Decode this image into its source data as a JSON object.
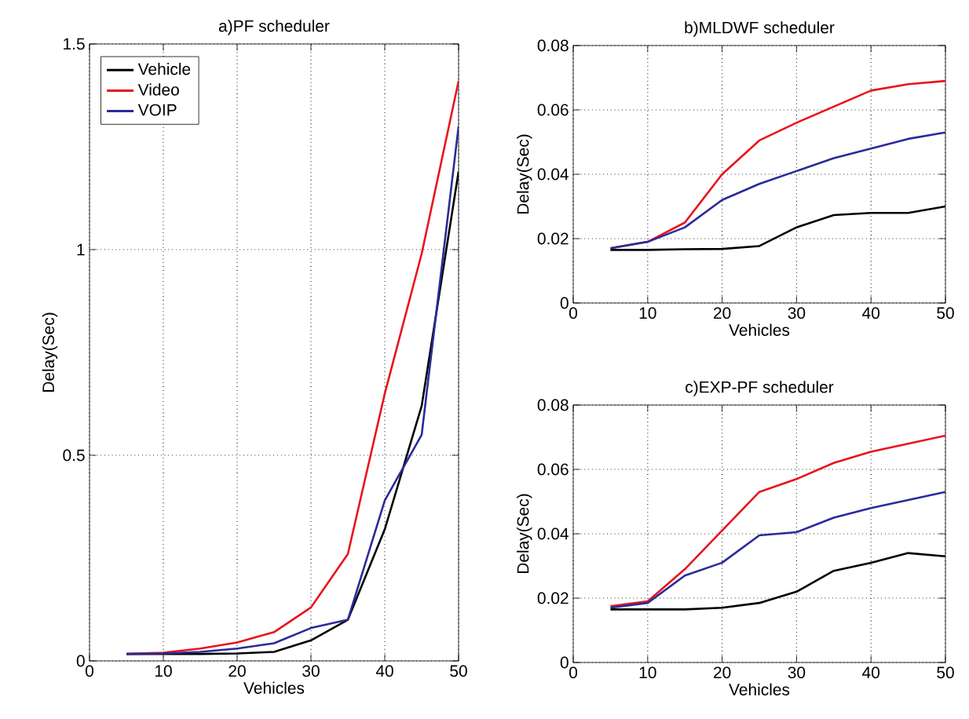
{
  "chart_data": [
    {
      "type": "line",
      "title": "a)PF scheduler",
      "xlabel": "Vehicles",
      "ylabel": "Delay(Sec)",
      "x": [
        5,
        10,
        15,
        20,
        25,
        30,
        35,
        40,
        45,
        50
      ],
      "xlim": [
        0,
        50
      ],
      "xticks": [
        0,
        10,
        20,
        30,
        40,
        50
      ],
      "ylim": [
        0,
        1.5
      ],
      "yticks": [
        0,
        0.5,
        1,
        1.5
      ],
      "grid": true,
      "legend": "top left",
      "marker": "none",
      "line_style": "solid",
      "series": [
        {
          "name": "Vehicle",
          "color": "#000000",
          "values": [
            0.017,
            0.017,
            0.017,
            0.018,
            0.022,
            0.05,
            0.1,
            0.32,
            0.62,
            1.19
          ]
        },
        {
          "name": "Video",
          "color": "#e8141c",
          "values": [
            0.017,
            0.02,
            0.03,
            0.045,
            0.07,
            0.13,
            0.26,
            0.65,
            0.99,
            1.41
          ]
        },
        {
          "name": "VOIP",
          "color": "#2a2a9a",
          "values": [
            0.017,
            0.018,
            0.022,
            0.03,
            0.043,
            0.08,
            0.1,
            0.39,
            0.55,
            1.3
          ]
        }
      ]
    },
    {
      "type": "line",
      "title": "b)MLDWF scheduler",
      "xlabel": "Vehicles",
      "ylabel": "Delay(Sec)",
      "x": [
        5,
        10,
        15,
        20,
        25,
        30,
        35,
        40,
        45,
        50
      ],
      "xlim": [
        0,
        50
      ],
      "xticks": [
        0,
        10,
        20,
        30,
        40,
        50
      ],
      "ylim": [
        0,
        0.08
      ],
      "yticks": [
        0,
        0.02,
        0.04,
        0.06,
        0.08
      ],
      "grid": true,
      "marker": "none",
      "line_style": "solid",
      "series": [
        {
          "color": "#000000",
          "values": [
            0.0165,
            0.0165,
            0.0167,
            0.0168,
            0.0177,
            0.0235,
            0.0273,
            0.028,
            0.028,
            0.03
          ]
        },
        {
          "color": "#e8141c",
          "values": [
            0.017,
            0.019,
            0.025,
            0.04,
            0.0505,
            0.056,
            0.061,
            0.066,
            0.068,
            0.069
          ]
        },
        {
          "color": "#2a2a9a",
          "values": [
            0.017,
            0.019,
            0.0235,
            0.032,
            0.037,
            0.041,
            0.045,
            0.048,
            0.051,
            0.053
          ]
        }
      ]
    },
    {
      "type": "line",
      "title": "c)EXP-PF scheduler",
      "xlabel": "Vehicles",
      "ylabel": "Delay(Sec)",
      "x": [
        5,
        10,
        15,
        20,
        25,
        30,
        35,
        40,
        45,
        50
      ],
      "xlim": [
        0,
        50
      ],
      "xticks": [
        0,
        10,
        20,
        30,
        40,
        50
      ],
      "ylim": [
        0,
        0.08
      ],
      "yticks": [
        0,
        0.02,
        0.04,
        0.06,
        0.08
      ],
      "grid": true,
      "marker": "none",
      "line_style": "solid",
      "series": [
        {
          "color": "#000000",
          "values": [
            0.0165,
            0.0165,
            0.0165,
            0.017,
            0.0185,
            0.022,
            0.0285,
            0.031,
            0.034,
            0.033
          ]
        },
        {
          "color": "#e8141c",
          "values": [
            0.0175,
            0.019,
            0.029,
            0.041,
            0.053,
            0.057,
            0.062,
            0.0655,
            0.068,
            0.0705
          ]
        },
        {
          "color": "#2a2a9a",
          "values": [
            0.017,
            0.0185,
            0.027,
            0.031,
            0.0395,
            0.0405,
            0.045,
            0.048,
            0.0505,
            0.053
          ]
        }
      ]
    }
  ]
}
